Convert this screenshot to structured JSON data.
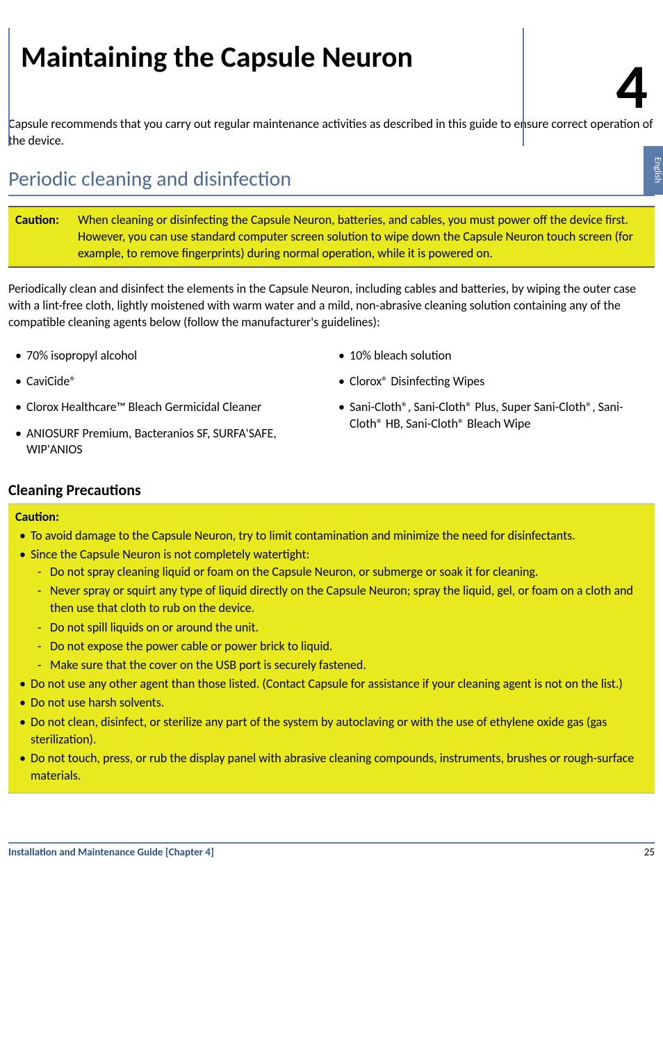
{
  "chapter": {
    "title": "Maintaining the Capsule Neuron",
    "number": "4"
  },
  "lang_tab": "English",
  "intro": "Capsule recommends that you carry out regular maintenance activities as described in this guide to ensure correct operation of the device.",
  "section1": {
    "heading": "Periodic cleaning and disinfection",
    "caution_label": "Caution:",
    "caution_text": "When cleaning or disinfecting the Capsule Neuron, batteries, and cables, you must power off the device first. However, you can use standard computer screen solution to wipe down the Capsule Neuron touch screen (for example, to remove fingerprints) during normal operation, while it is powered on.",
    "para": "Periodically clean and disinfect the elements in the Capsule Neuron, including cables and batteries,  by wiping the outer case with a lint-free cloth, lightly moistened with warm water and a mild, non-abrasive cleaning solution containing any of the compatible cleaning agents below (follow the manufacturer's guidelines):",
    "agents_left": [
      "70% isopropyl alcohol",
      "CaviCide®",
      "Clorox Healthcare™  Bleach Germicidal Cleaner",
      "ANIOSURF Premium, Bacteranios SF, SURFA'SAFE, WIP'ANIOS"
    ],
    "agents_right": [
      "10% bleach solution",
      "Clorox® Disinfecting Wipes",
      "Sani-Cloth®, Sani-Cloth® Plus, Super Sani-Cloth®, Sani-Cloth® HB, Sani-Cloth® Bleach Wipe"
    ]
  },
  "precautions": {
    "heading": "Cleaning Precautions",
    "label": "Caution:",
    "items": [
      "To avoid damage to the Capsule Neuron, try to limit contamination and minimize the need for disinfectants.",
      "Since the Capsule Neuron is not completely watertight:",
      "Do not use any other agent than those listed. (Contact Capsule for assistance if your cleaning agent is not on the list.)",
      "Do not use harsh solvents.",
      "Do not clean, disinfect, or sterilize any part of the system by autoclaving or with the use of ethylene oxide gas (gas sterilization).",
      "Do not touch, press, or rub the display panel with abrasive cleaning compounds, instruments, brushes or rough-surface materials."
    ],
    "subitems": [
      "Do not spray cleaning liquid or foam on the Capsule Neuron, or submerge or soak it for cleaning.",
      "Never spray or squirt any type of liquid directly on the Capsule Neuron; spray the liquid, gel, or foam on a cloth and then use that cloth to rub on the device.",
      "Do not spill liquids on or around the unit.",
      "Do not expose the power cable or power brick to liquid.",
      "Make sure that the cover on the USB port is securely fastened."
    ]
  },
  "footer": {
    "left": "Installation and Maintenance Guide [Chapter 4]",
    "page": "25"
  },
  "colors": {
    "accent": "#5b7ba8",
    "caution_bg": "#e9e91f",
    "heading": "#4a6a99",
    "footer_text": "#2a5289"
  }
}
